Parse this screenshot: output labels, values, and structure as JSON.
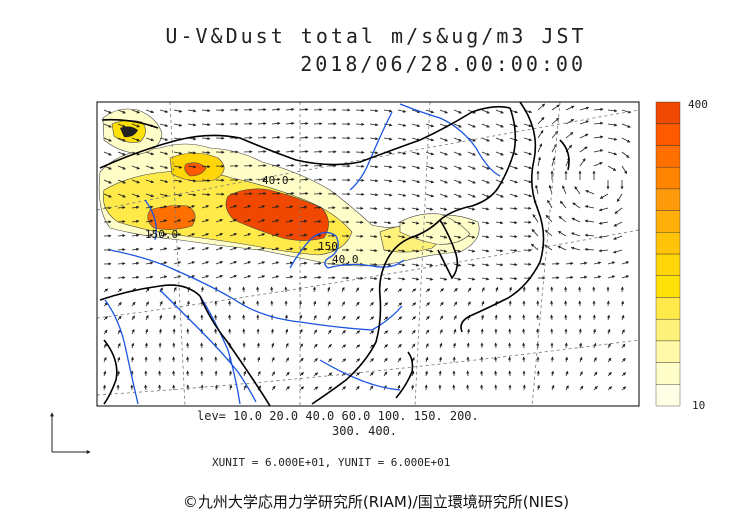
{
  "title": {
    "line1": "U-V&Dust total m/s&ug/m3 JST",
    "line2": "2018/06/28.00:00:00"
  },
  "colorbar": {
    "max_label": "400",
    "min_label": "10",
    "colors": [
      "#ffffe6",
      "#fffdc8",
      "#fff9a8",
      "#fff27a",
      "#ffea4a",
      "#ffe10a",
      "#ffd60a",
      "#ffc40a",
      "#ffb00a",
      "#ff9a0a",
      "#ff8400",
      "#ff7000",
      "#ff5a00",
      "#f04800"
    ]
  },
  "contour_labels": [
    "40.0",
    "150.0",
    "150",
    "40.0"
  ],
  "levels": {
    "line1": "lev= 10.0 20.0 40.0 60.0 100. 150. 200.",
    "line2": "300. 400."
  },
  "units": "XUNIT = 6.000E+01, YUNIT = 6.000E+01",
  "copyright": "©九州大学応用力学研究所(RIAM)/国立環境研究所(NIES)",
  "colors": {
    "coast": "#000000",
    "river": "#1a55e0",
    "grid": "#777777",
    "arrow": "#222222"
  }
}
